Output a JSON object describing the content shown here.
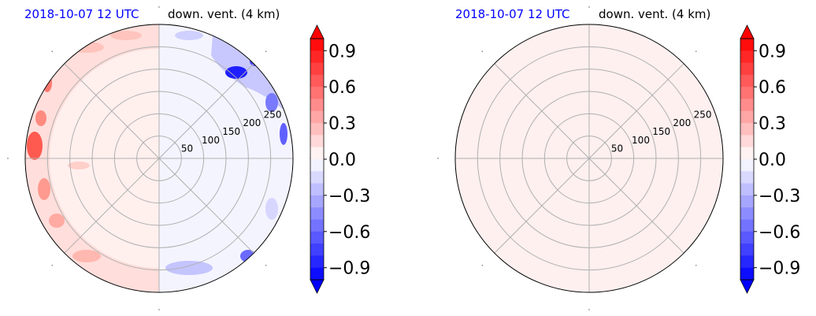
{
  "chart_data": [
    {
      "type": "heatmap",
      "projection": "polar",
      "title_left": "2018-10-07 12 UTC",
      "title_right": "down. vent. (4 km)",
      "radial_ticks": [
        "50",
        "100",
        "150",
        "200",
        "250"
      ],
      "colorbar": {
        "ticks": [
          "0.9",
          "0.6",
          "0.3",
          "0.0",
          "−0.3",
          "−0.6",
          "−0.9"
        ],
        "tick_values": [
          0.9,
          0.6,
          0.3,
          0.0,
          -0.3,
          -0.6,
          -0.9
        ],
        "range": [
          -1.0,
          1.0
        ],
        "cmap": "bwr",
        "extend": "both"
      },
      "field": "mixed positive/negative anomalies; positive on western half, negative on north-east and south-east edges"
    },
    {
      "type": "heatmap",
      "projection": "polar",
      "title_left": "2018-10-07 12 UTC",
      "title_right": "down. vent. (4 km)",
      "radial_ticks": [
        "50",
        "100",
        "150",
        "200",
        "250"
      ],
      "colorbar": {
        "ticks": [
          "0.9",
          "0.6",
          "0.3",
          "0.0",
          "−0.3",
          "−0.6",
          "−0.9"
        ],
        "tick_values": [
          0.9,
          0.6,
          0.3,
          0.0,
          -0.3,
          -0.6,
          -0.9
        ],
        "range": [
          -1.0,
          1.0
        ],
        "cmap": "bwr",
        "extend": "both"
      },
      "field": "uniform near-zero (very light red)"
    }
  ]
}
